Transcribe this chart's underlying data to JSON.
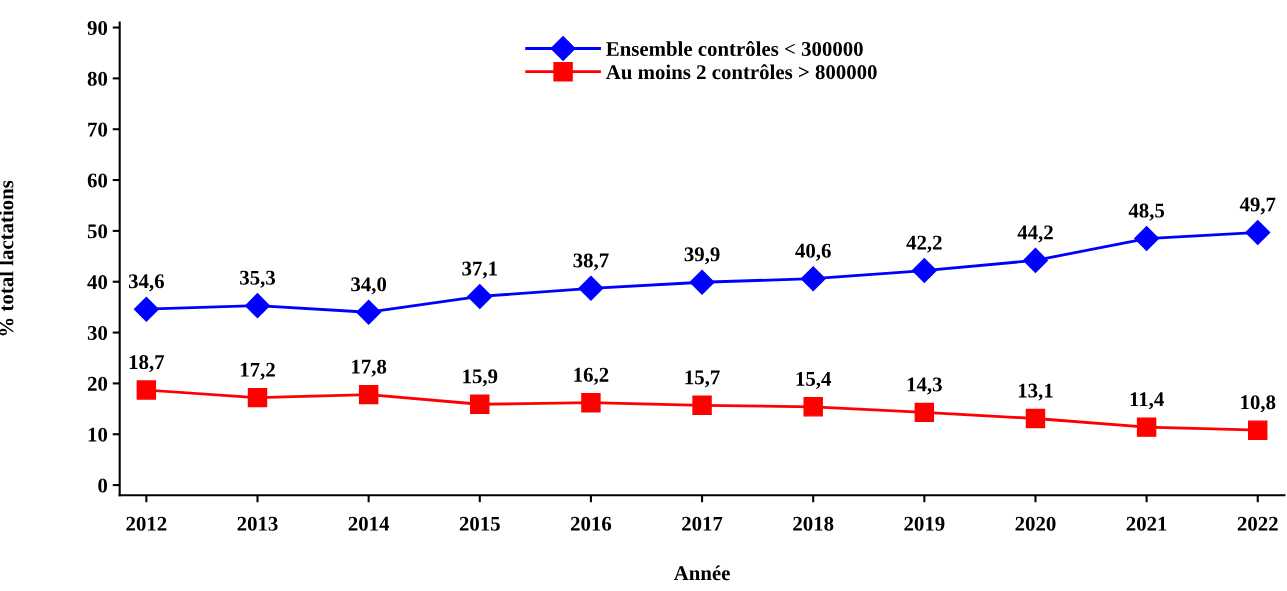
{
  "chart_data": {
    "type": "line",
    "xlabel": "Année",
    "ylabel": "% total lactations",
    "categories": [
      "2012",
      "2013",
      "2014",
      "2015",
      "2016",
      "2017",
      "2018",
      "2019",
      "2020",
      "2021",
      "2022"
    ],
    "series": [
      {
        "name": "Ensemble contrôles < 300000",
        "color": "#0000ff",
        "marker": "diamond",
        "values": [
          34.6,
          35.3,
          34.0,
          37.1,
          38.7,
          39.9,
          40.6,
          42.2,
          44.2,
          48.5,
          49.7
        ],
        "value_labels": [
          "34,6",
          "35,3",
          "34,0",
          "37,1",
          "38,7",
          "39,9",
          "40,6",
          "42,2",
          "44,2",
          "48,5",
          "49,7"
        ]
      },
      {
        "name": "Au moins 2 contrôles > 800000",
        "color": "#ff0000",
        "marker": "square",
        "values": [
          18.7,
          17.2,
          17.8,
          15.9,
          16.2,
          15.7,
          15.4,
          14.3,
          13.1,
          11.4,
          10.8
        ],
        "value_labels": [
          "18,7",
          "17,2",
          "17,8",
          "15,9",
          "16,2",
          "15,7",
          "15,4",
          "14,3",
          "13,1",
          "11,4",
          "10,8"
        ]
      }
    ],
    "ylim": [
      -2,
      91
    ],
    "yticks": [
      0,
      10,
      20,
      30,
      40,
      50,
      60,
      70,
      80,
      90
    ],
    "grid": false,
    "legend": "top",
    "line_style": "solid"
  }
}
